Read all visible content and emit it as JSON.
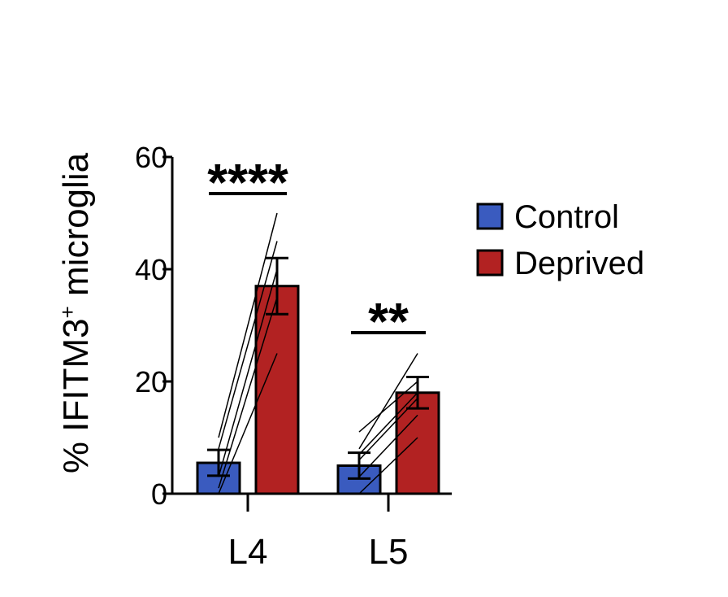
{
  "chart_data": {
    "type": "bar",
    "ylabel_prefix": "% IFITM3",
    "ylabel_superscript": "+",
    "ylabel_suffix": " microglia",
    "ylim": [
      0,
      60
    ],
    "yticks": [
      0,
      20,
      40,
      60
    ],
    "categories": [
      "L4",
      "L5"
    ],
    "series": [
      {
        "name": "Control",
        "color": "#3a5bbf",
        "values": [
          5.5,
          5.0
        ],
        "errors": [
          2.3,
          2.3
        ]
      },
      {
        "name": "Deprived",
        "color": "#b22222",
        "values": [
          37.0,
          18.0
        ],
        "errors": [
          5.0,
          2.8
        ]
      }
    ],
    "paired_lines": [
      [
        [
          10.0,
          50.0
        ],
        [
          8.0,
          45.0
        ],
        [
          3.0,
          40.0
        ],
        [
          1.0,
          35.0
        ],
        [
          0.0,
          25.0
        ]
      ],
      [
        [
          8.0,
          25.0
        ],
        [
          11.0,
          20.0
        ],
        [
          7.0,
          18.0
        ],
        [
          6.0,
          17.0
        ],
        [
          3.0,
          14.0
        ],
        [
          0.0,
          10.0
        ]
      ]
    ],
    "significance": [
      "****",
      "**"
    ],
    "legend_position": "right",
    "grid": false
  }
}
